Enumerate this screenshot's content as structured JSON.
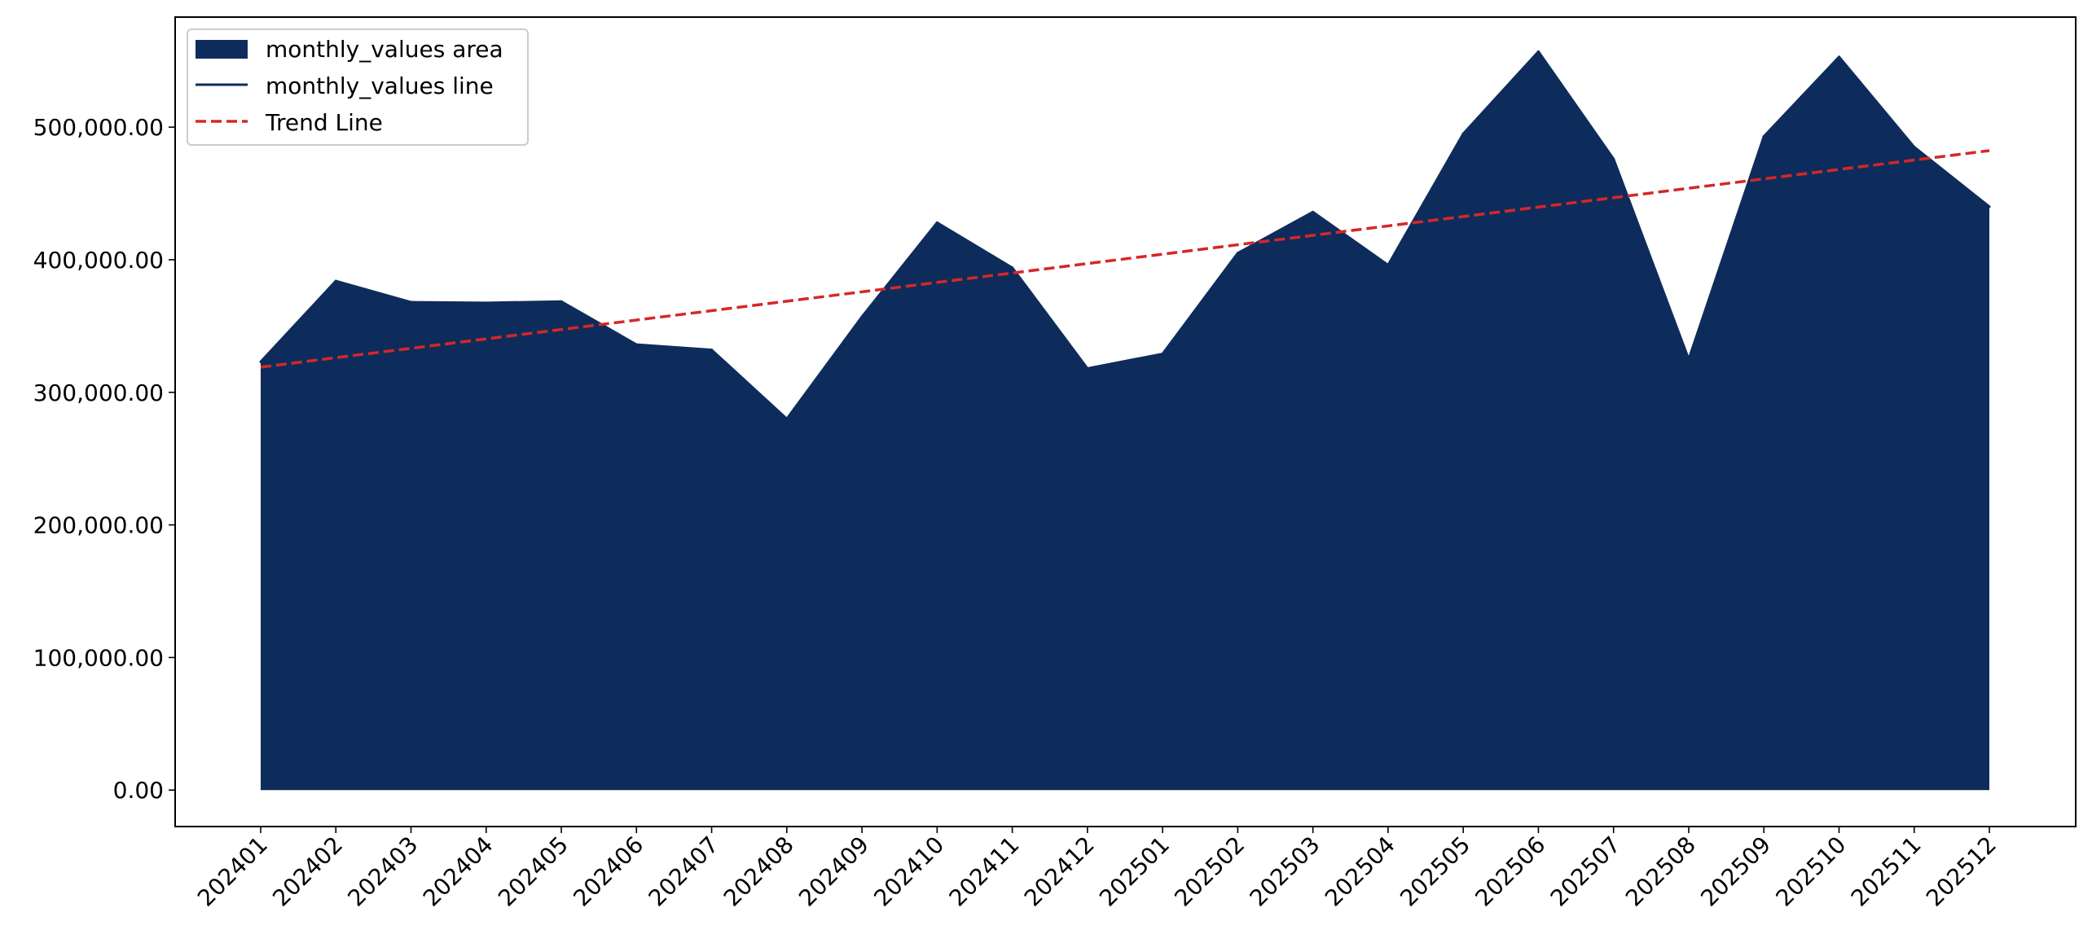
{
  "chart_data": {
    "type": "area",
    "title": "",
    "xlabel": "",
    "ylabel": "",
    "categories": [
      "202401",
      "202402",
      "202403",
      "202404",
      "202405",
      "202406",
      "202407",
      "202408",
      "202409",
      "202410",
      "202411",
      "202412",
      "202501",
      "202502",
      "202503",
      "202504",
      "202505",
      "202506",
      "202507",
      "202508",
      "202509",
      "202510",
      "202511",
      "202512"
    ],
    "series": [
      {
        "name": "monthly_values area",
        "kind": "area",
        "color": "#0e2c5b",
        "values": [
          323000,
          384000,
          368000,
          367500,
          368500,
          336000,
          332000,
          280000,
          357000,
          428000,
          394000,
          318000,
          329000,
          405000,
          436000,
          396000,
          495000,
          557000,
          476000,
          325000,
          493000,
          553000,
          485000,
          440000
        ]
      },
      {
        "name": "monthly_values line",
        "kind": "line",
        "color": "#0e2c5b",
        "values": [
          323000,
          384000,
          368000,
          367500,
          368500,
          336000,
          332000,
          280000,
          357000,
          428000,
          394000,
          318000,
          329000,
          405000,
          436000,
          396000,
          495000,
          557000,
          476000,
          325000,
          493000,
          553000,
          485000,
          440000
        ]
      },
      {
        "name": "Trend Line",
        "kind": "trend",
        "color": "#d62728",
        "style": "dashed",
        "values": [
          319000,
          326100,
          333200,
          340300,
          347400,
          354500,
          361600,
          368700,
          375800,
          382900,
          390000,
          397100,
          404200,
          411300,
          418400,
          425500,
          432600,
          439700,
          446800,
          453900,
          461000,
          468100,
          475200,
          482300
        ]
      }
    ],
    "ylim": [
      -27500,
      583000
    ],
    "yticks": [
      0,
      100000,
      200000,
      300000,
      400000,
      500000
    ],
    "ytick_labels": [
      "0.00",
      "100,000.00",
      "200,000.00",
      "300,000.00",
      "400,000.00",
      "500,000.00"
    ],
    "xtick_rotation_deg": 45,
    "grid": false,
    "legend": {
      "location": "upper left",
      "entries": [
        "monthly_values area",
        "monthly_values line",
        "Trend Line"
      ]
    }
  }
}
